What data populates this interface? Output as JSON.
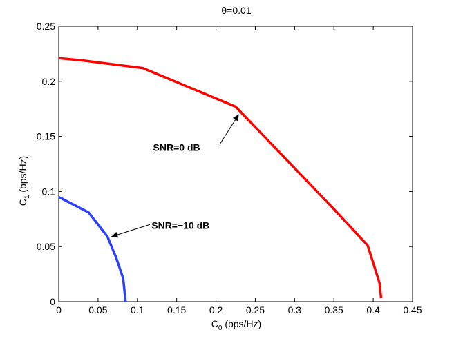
{
  "chart_data": {
    "type": "line",
    "title": "θ=0.01",
    "xlabel": {
      "base": "C",
      "sub": "0",
      "rest": " (bps/Hz)"
    },
    "ylabel": {
      "base": "C",
      "sub": "1",
      "rest": " (bps/Hz)"
    },
    "xlim": [
      0,
      0.45
    ],
    "ylim": [
      0,
      0.25
    ],
    "xticks": [
      0,
      0.05,
      0.1,
      0.15,
      0.2,
      0.25,
      0.3,
      0.35,
      0.4,
      0.45
    ],
    "xtick_labels": [
      "0",
      "0.05",
      "0.1",
      "0.15",
      "0.2",
      "0.25",
      "0.3",
      "0.35",
      "0.4",
      "0.45"
    ],
    "yticks": [
      0,
      0.05,
      0.1,
      0.15,
      0.2,
      0.25
    ],
    "ytick_labels": [
      "0",
      "0.05",
      "0.1",
      "0.15",
      "0.2",
      "0.25"
    ],
    "grid": false,
    "series": [
      {
        "color": "#ff0000",
        "x": [
          0,
          0.03,
          0.107,
          0.225,
          0.35,
          0.393,
          0.408,
          0.41
        ],
        "y": [
          0.221,
          0.219,
          0.212,
          0.177,
          0.084,
          0.051,
          0.017,
          0.003
        ]
      },
      {
        "color": "#2a3fff",
        "x": [
          0,
          0.038,
          0.062,
          0.073,
          0.082,
          0.085
        ],
        "y": [
          0.095,
          0.081,
          0.059,
          0.04,
          0.021,
          0.0
        ]
      }
    ],
    "annotations": [
      {
        "text": "SNR=0 dB",
        "text_x": 0.12,
        "text_y": 0.137,
        "arrow_from": [
          0.205,
          0.143
        ],
        "arrow_to": [
          0.229,
          0.17
        ]
      },
      {
        "text": "SNR=−10 dB",
        "text_x": 0.118,
        "text_y": 0.066,
        "arrow_from": [
          0.116,
          0.07
        ],
        "arrow_to": [
          0.067,
          0.059
        ]
      }
    ]
  }
}
